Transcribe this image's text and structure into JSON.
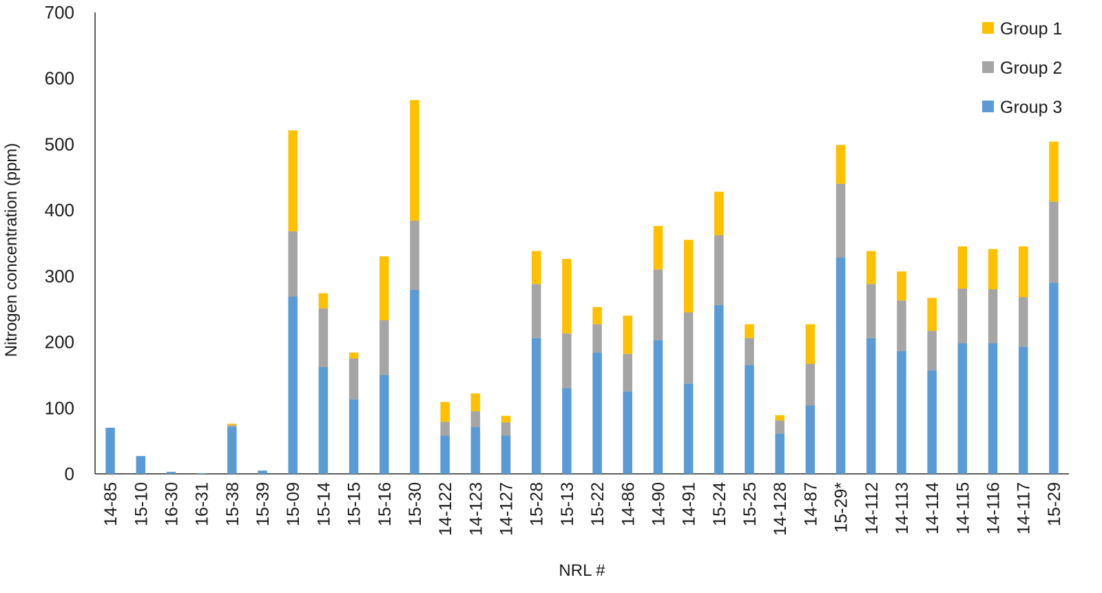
{
  "chart_data": {
    "type": "bar",
    "stacked": true,
    "xlabel": "NRL #",
    "ylabel": "Nitrogen concentration (ppm)",
    "ylim": [
      0,
      700
    ],
    "yticks": [
      0,
      100,
      200,
      300,
      400,
      500,
      600,
      700
    ],
    "grid": false,
    "legend": "top-right",
    "categories": [
      "14-85",
      "15-10",
      "16-30",
      "16-31",
      "15-38",
      "15-39",
      "15-09",
      "15-14",
      "15-15",
      "15-16",
      "15-30",
      "14-122",
      "14-123",
      "14-127",
      "15-28",
      "15-13",
      "15-22",
      "14-86",
      "14-90",
      "14-91",
      "15-24",
      "15-25",
      "14-128",
      "14-87",
      "15-29*",
      "14-112",
      "14-113",
      "14-114",
      "14-115",
      "14-116",
      "14-117",
      "15-29"
    ],
    "series": [
      {
        "name": "Group 3",
        "color": "#5b9bd5",
        "values": [
          70,
          27,
          3,
          1,
          71,
          5,
          269,
          162,
          113,
          150,
          279,
          58,
          71,
          58,
          206,
          130,
          184,
          125,
          203,
          137,
          256,
          165,
          61,
          104,
          328,
          206,
          186,
          157,
          198,
          198,
          193,
          290
        ]
      },
      {
        "name": "Group 2",
        "color": "#a5a5a5",
        "values": [
          0,
          0,
          0,
          0,
          3,
          0,
          99,
          89,
          62,
          83,
          105,
          21,
          24,
          20,
          82,
          83,
          43,
          57,
          107,
          108,
          106,
          41,
          20,
          63,
          112,
          82,
          77,
          60,
          83,
          82,
          75,
          123
        ]
      },
      {
        "name": "Group 1",
        "color": "#ffc000",
        "values": [
          0,
          0,
          0,
          0,
          2,
          0,
          153,
          23,
          9,
          97,
          183,
          30,
          27,
          10,
          50,
          113,
          26,
          58,
          66,
          110,
          66,
          21,
          8,
          60,
          59,
          50,
          44,
          50,
          64,
          61,
          77,
          91
        ]
      }
    ],
    "legend_order": [
      "Group 1",
      "Group 2",
      "Group 3"
    ]
  }
}
